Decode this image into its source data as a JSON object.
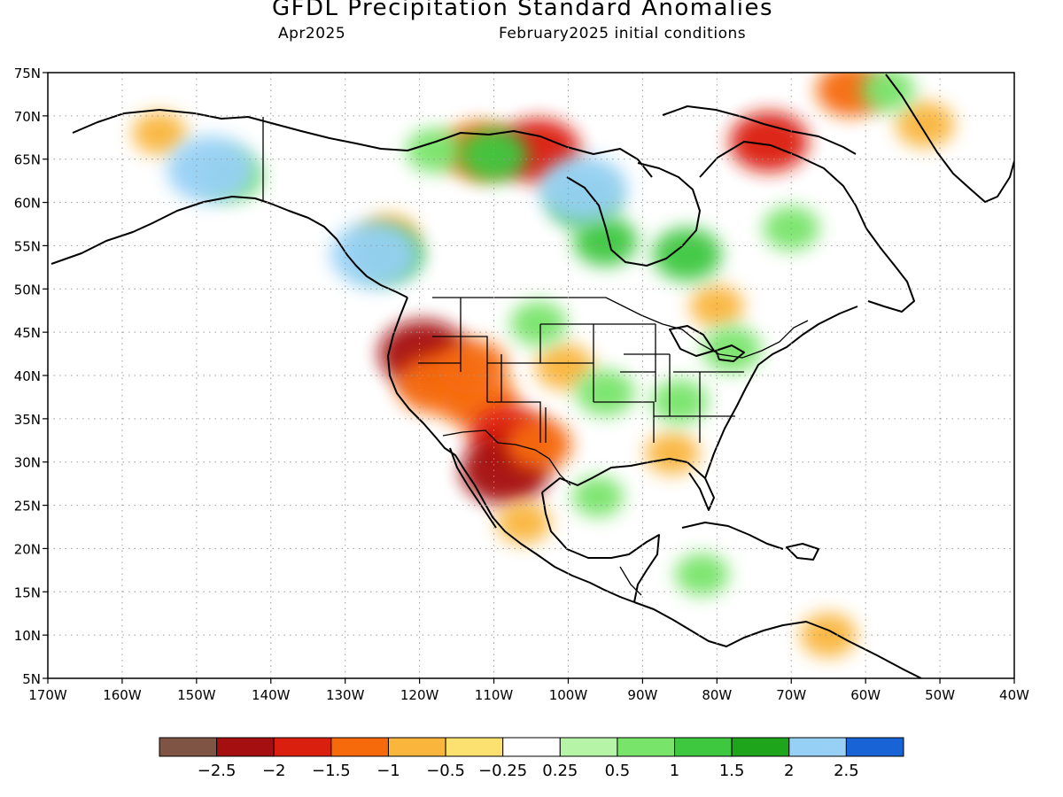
{
  "title": "GFDL Precipitation Standard Anomalies",
  "subtitle_left": "Apr2025",
  "subtitle_right": "February2025 initial conditions",
  "map": {
    "lon_range": [
      -170,
      -40
    ],
    "lat_range": [
      5,
      75
    ],
    "lon_ticks": [
      {
        "lon": -170,
        "label": "170W"
      },
      {
        "lon": -160,
        "label": "160W"
      },
      {
        "lon": -150,
        "label": "150W"
      },
      {
        "lon": -140,
        "label": "140W"
      },
      {
        "lon": -130,
        "label": "130W"
      },
      {
        "lon": -120,
        "label": "120W"
      },
      {
        "lon": -110,
        "label": "110W"
      },
      {
        "lon": -100,
        "label": "100W"
      },
      {
        "lon": -90,
        "label": "90W"
      },
      {
        "lon": -80,
        "label": "80W"
      },
      {
        "lon": -70,
        "label": "70W"
      },
      {
        "lon": -60,
        "label": "60W"
      },
      {
        "lon": -50,
        "label": "50W"
      },
      {
        "lon": -40,
        "label": "40W"
      }
    ],
    "lat_ticks": [
      {
        "lat": 75,
        "label": "75N"
      },
      {
        "lat": 70,
        "label": "70N"
      },
      {
        "lat": 65,
        "label": "65N"
      },
      {
        "lat": 60,
        "label": "60N"
      },
      {
        "lat": 55,
        "label": "55N"
      },
      {
        "lat": 50,
        "label": "50N"
      },
      {
        "lat": 45,
        "label": "45N"
      },
      {
        "lat": 40,
        "label": "40N"
      },
      {
        "lat": 35,
        "label": "35N"
      },
      {
        "lat": 30,
        "label": "30N"
      },
      {
        "lat": 25,
        "label": "25N"
      },
      {
        "lat": 20,
        "label": "20N"
      },
      {
        "lat": 15,
        "label": "15N"
      },
      {
        "lat": 10,
        "label": "10N"
      },
      {
        "lat": 5,
        "label": "5N"
      }
    ],
    "grid": "dotted",
    "anomaly_regions": [
      {
        "lon": -119.5,
        "lat": 42.5,
        "value": -2.2
      },
      {
        "lon": -118,
        "lat": 39,
        "value": -1.5
      },
      {
        "lon": -112,
        "lat": 37,
        "value": -1.5
      },
      {
        "lon": -108,
        "lat": 33,
        "value": -1.6
      },
      {
        "lon": -108.5,
        "lat": 29,
        "value": -2.2
      },
      {
        "lon": -113,
        "lat": 41,
        "value": -1.3
      },
      {
        "lon": -104,
        "lat": 32,
        "value": -1.1
      },
      {
        "lon": -106,
        "lat": 23,
        "value": -0.6
      },
      {
        "lon": -112,
        "lat": 66,
        "value": -1.4
      },
      {
        "lon": -104,
        "lat": 66,
        "value": -1.8
      },
      {
        "lon": -73,
        "lat": 67,
        "value": -1.6
      },
      {
        "lon": -52,
        "lat": 69,
        "value": -0.8
      },
      {
        "lon": -62,
        "lat": 73,
        "value": -1.2
      },
      {
        "lon": -100.5,
        "lat": 41,
        "value": -0.8
      },
      {
        "lon": -80,
        "lat": 48,
        "value": -0.6
      },
      {
        "lon": -65,
        "lat": 10,
        "value": -0.7
      },
      {
        "lon": -86,
        "lat": 31,
        "value": -0.6
      },
      {
        "lon": -155,
        "lat": 68,
        "value": -0.6
      },
      {
        "lon": -124,
        "lat": 56,
        "value": -0.7
      },
      {
        "lon": -145,
        "lat": 63,
        "value": 0.8
      },
      {
        "lon": -118,
        "lat": 66,
        "value": 0.7
      },
      {
        "lon": -110,
        "lat": 65.5,
        "value": 1.2
      },
      {
        "lon": -98,
        "lat": 60,
        "value": 1.1
      },
      {
        "lon": -95,
        "lat": 55.5,
        "value": 1.0
      },
      {
        "lon": -84,
        "lat": 54,
        "value": 1.2
      },
      {
        "lon": -124,
        "lat": 54,
        "value": 1.1
      },
      {
        "lon": -95,
        "lat": 38,
        "value": 0.8
      },
      {
        "lon": -85,
        "lat": 37,
        "value": 0.7
      },
      {
        "lon": -78,
        "lat": 43,
        "value": 0.8
      },
      {
        "lon": -70,
        "lat": 57,
        "value": 0.7
      },
      {
        "lon": -57,
        "lat": 73,
        "value": 0.6
      },
      {
        "lon": -104,
        "lat": 46,
        "value": 0.7
      },
      {
        "lon": -82,
        "lat": 17,
        "value": 0.6
      },
      {
        "lon": -96,
        "lat": 26,
        "value": 0.5
      },
      {
        "lon": -98,
        "lat": 61.5,
        "value": 2.1
      },
      {
        "lon": -126,
        "lat": 54,
        "value": 2.1
      },
      {
        "lon": -148,
        "lat": 63.8,
        "value": 2.0
      }
    ],
    "colorbar": {
      "colors": [
        "#7f5445",
        "#a50f0f",
        "#db1f0f",
        "#f66a0b",
        "#f9b53c",
        "#fde170",
        "#ffffff",
        "#b6f5a8",
        "#78e46a",
        "#3ec83f",
        "#1ea51c",
        "#96d0f5",
        "#1863d6"
      ],
      "labels": [
        "−2.5",
        "−2",
        "−1.5",
        "−1",
        "−0.5",
        "−0.25",
        "0.25",
        "0.5",
        "1",
        "1.5",
        "2",
        "2.5"
      ]
    }
  }
}
